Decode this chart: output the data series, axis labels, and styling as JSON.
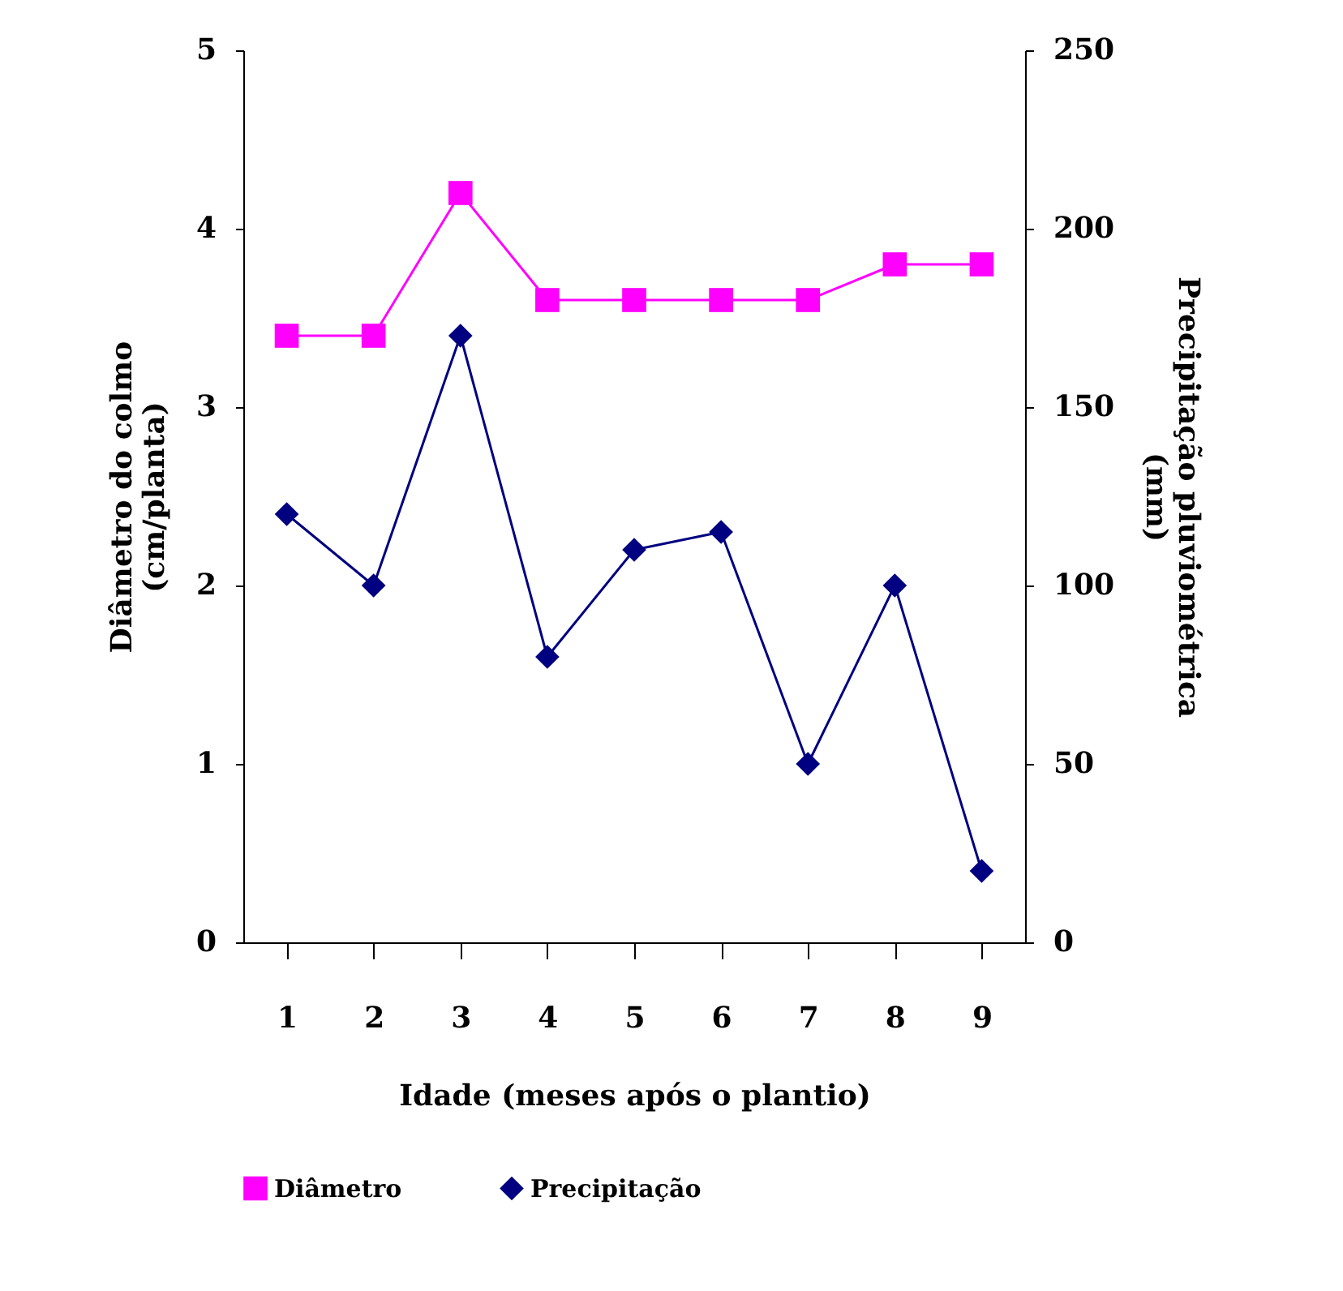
{
  "chart_data": {
    "type": "line",
    "xlabel": "Idade (meses após o plantio)",
    "ylabel": "Diâmetro do colmo\n(cm/planta)",
    "y2label": "Precipitação pluviométrica\n(mm)",
    "categories": [
      "1",
      "2",
      "3",
      "4",
      "5",
      "6",
      "7",
      "8",
      "9"
    ],
    "series": [
      {
        "name": "Diâmetro",
        "color": "#ff00ff",
        "marker": "square",
        "values": [
          3.4,
          3.4,
          4.2,
          3.6,
          3.6,
          3.6,
          3.6,
          3.8,
          3.8
        ]
      },
      {
        "name": "Precipitação",
        "color": "#000080",
        "marker": "diamond",
        "axis": "y2",
        "values": [
          120,
          100,
          170,
          80,
          110,
          115,
          50,
          100,
          20
        ]
      }
    ],
    "ylim": [
      0,
      5
    ],
    "yticks": [
      0,
      1,
      2,
      3,
      4,
      5
    ],
    "y2lim": [
      0,
      250
    ],
    "y2ticks": [
      0,
      50,
      100,
      150,
      200,
      250
    ],
    "grid": false,
    "legend": "bottom",
    "line_style": "solid"
  }
}
